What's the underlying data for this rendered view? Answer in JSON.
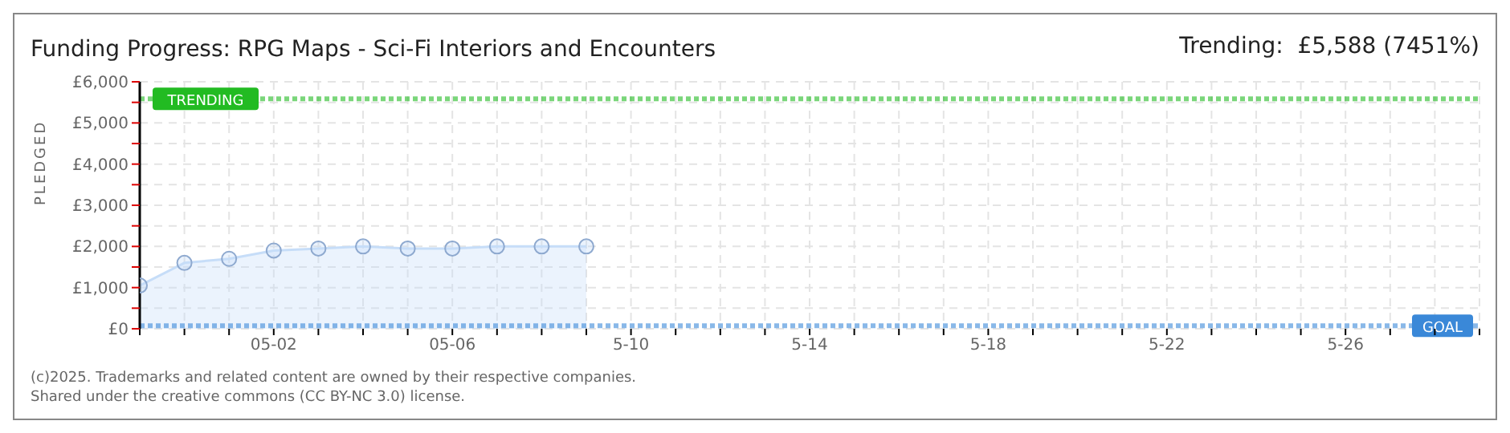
{
  "chart_data": {
    "type": "area",
    "title": "Funding Progress: RPG Maps - Sci-Fi Interiors and Encounters",
    "subtitle": "Trending:  £5,588 (7451%)",
    "ylabel": "PLEDGED",
    "x": [
      "2025-04-29",
      "2025-04-30",
      "2025-05-01",
      "2025-05-02",
      "2025-05-03",
      "2025-05-04",
      "2025-05-05",
      "2025-05-06",
      "2025-05-07",
      "2025-05-08",
      "2025-05-09"
    ],
    "series": [
      {
        "color": "#c6ddf8",
        "values": [
          1050,
          1600,
          1700,
          1900,
          1950,
          2000,
          1950,
          1950,
          2000,
          2000,
          2000
        ]
      }
    ],
    "xlim": [
      "2025-04-29",
      "2025-05-29"
    ],
    "xticks": [
      {
        "value": "2025-04-29",
        "label": null
      },
      {
        "value": "2025-04-30",
        "label": null
      },
      {
        "value": "2025-05-01",
        "label": null
      },
      {
        "value": "2025-05-02",
        "label": "05-02"
      },
      {
        "value": "2025-05-03",
        "label": null
      },
      {
        "value": "2025-05-04",
        "label": null
      },
      {
        "value": "2025-05-05",
        "label": null
      },
      {
        "value": "2025-05-06",
        "label": "05-06"
      },
      {
        "value": "2025-05-07",
        "label": null
      },
      {
        "value": "2025-05-08",
        "label": null
      },
      {
        "value": "2025-05-09",
        "label": null
      },
      {
        "value": "2025-05-10",
        "label": "5-10"
      },
      {
        "value": "2025-05-11",
        "label": null
      },
      {
        "value": "2025-05-12",
        "label": null
      },
      {
        "value": "2025-05-13",
        "label": null
      },
      {
        "value": "2025-05-14",
        "label": "5-14"
      },
      {
        "value": "2025-05-15",
        "label": null
      },
      {
        "value": "2025-05-16",
        "label": null
      },
      {
        "value": "2025-05-17",
        "label": null
      },
      {
        "value": "2025-05-18",
        "label": "5-18"
      },
      {
        "value": "2025-05-19",
        "label": null
      },
      {
        "value": "2025-05-20",
        "label": null
      },
      {
        "value": "2025-05-21",
        "label": null
      },
      {
        "value": "2025-05-22",
        "label": "5-22"
      },
      {
        "value": "2025-05-23",
        "label": null
      },
      {
        "value": "2025-05-24",
        "label": null
      },
      {
        "value": "2025-05-25",
        "label": null
      },
      {
        "value": "2025-05-26",
        "label": "5-26"
      },
      {
        "value": "2025-05-27",
        "label": null
      },
      {
        "value": "2025-05-28",
        "label": null
      },
      {
        "value": "2025-05-29",
        "label": null
      }
    ],
    "ylim": [
      0,
      6000
    ],
    "yticks": [
      {
        "value": 0,
        "label": "£0"
      },
      {
        "value": 500,
        "label": null
      },
      {
        "value": 1000,
        "label": "£1,000"
      },
      {
        "value": 1500,
        "label": null
      },
      {
        "value": 2000,
        "label": "£2,000"
      },
      {
        "value": 2500,
        "label": null
      },
      {
        "value": 3000,
        "label": "£3,000"
      },
      {
        "value": 3500,
        "label": null
      },
      {
        "value": 4000,
        "label": "£4,000"
      },
      {
        "value": 4500,
        "label": null
      },
      {
        "value": 5000,
        "label": "£5,000"
      },
      {
        "value": 5500,
        "label": null
      },
      {
        "value": 6000,
        "label": "£6,000"
      }
    ],
    "grid": true,
    "marker": "circle",
    "line_style": "solid",
    "ref_lines": [
      {
        "axis": "y",
        "value": 5588,
        "label": "TRENDING",
        "color": "#22bb22",
        "line_style": "dotted"
      },
      {
        "axis": "y",
        "value": 75,
        "label": "GOAL",
        "color": "#3a88d8",
        "line_style": "dotted"
      }
    ],
    "annotations": [
      "(c)2025. Trademarks and related content are owned by their respective companies.",
      "Shared under the creative commons (CC BY-NC 3.0) license."
    ]
  }
}
